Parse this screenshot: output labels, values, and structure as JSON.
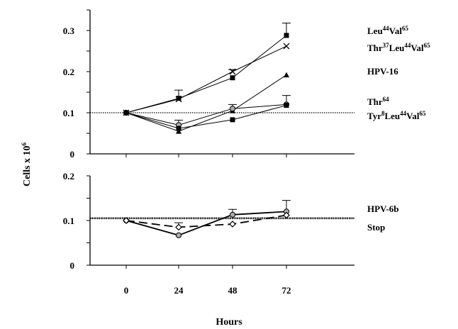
{
  "chart_data": [
    {
      "type": "line",
      "panel": "top",
      "x": [
        0,
        24,
        48,
        72
      ],
      "ylim": [
        0,
        0.35
      ],
      "yticks": [
        "0",
        "0.1",
        "0.2",
        "0.3"
      ],
      "reference_line": 0.1,
      "series": [
        {
          "name": "Leu44Val65",
          "label": [
            {
              "t": "Leu"
            },
            {
              "t": "44",
              "sup": true
            },
            {
              "t": "Val"
            },
            {
              "t": "65",
              "sup": true
            }
          ],
          "values": [
            0.1,
            0.135,
            0.185,
            0.288
          ],
          "errors": [
            0,
            0.02,
            0,
            0.03
          ],
          "marker": "square"
        },
        {
          "name": "Thr37Leu44Val65",
          "label": [
            {
              "t": "Thr"
            },
            {
              "t": "37",
              "sup": true
            },
            {
              "t": "Leu"
            },
            {
              "t": "44",
              "sup": true
            },
            {
              "t": "Val"
            },
            {
              "t": "65",
              "sup": true
            }
          ],
          "values": [
            0.1,
            0.133,
            0.2,
            0.262
          ],
          "errors": [
            0,
            0,
            0.005,
            0
          ],
          "marker": "x"
        },
        {
          "name": "HPV-16",
          "label": [
            {
              "t": "HPV-16"
            }
          ],
          "values": [
            0.1,
            0.055,
            0.105,
            0.192
          ],
          "errors": [
            0,
            0,
            0,
            0
          ],
          "marker": "triangle"
        },
        {
          "name": "Thr64",
          "label": [
            {
              "t": "Thr"
            },
            {
              "t": "64",
              "sup": true
            }
          ],
          "values": [
            0.1,
            0.07,
            0.11,
            0.12
          ],
          "errors": [
            0,
            0.012,
            0.01,
            0.022
          ],
          "marker": "circle"
        },
        {
          "name": "Tyr8Leu44Val65",
          "label": [
            {
              "t": "Tyr"
            },
            {
              "t": "8",
              "sup": true
            },
            {
              "t": "Leu"
            },
            {
              "t": "44",
              "sup": true
            },
            {
              "t": "Val"
            },
            {
              "t": "65",
              "sup": true
            }
          ],
          "values": [
            0.1,
            0.062,
            0.083,
            0.118
          ],
          "errors": [
            0,
            0,
            0,
            0
          ],
          "marker": "square"
        }
      ]
    },
    {
      "type": "line",
      "panel": "bottom",
      "x": [
        0,
        24,
        48,
        72
      ],
      "ylim": [
        0,
        0.2
      ],
      "yticks": [
        "0",
        "0.1",
        "0.2"
      ],
      "reference_line": 0.105,
      "series": [
        {
          "name": "HPV-6b",
          "label": [
            {
              "t": "HPV-6b"
            }
          ],
          "values": [
            0.1,
            0.067,
            0.113,
            0.12
          ],
          "errors": [
            0,
            0,
            0.012,
            0.025
          ],
          "marker": "circle",
          "dash": "solid"
        },
        {
          "name": "Stop",
          "label": [
            {
              "t": "Stop"
            }
          ],
          "values": [
            0.1,
            0.085,
            0.092,
            0.112
          ],
          "errors": [
            0,
            0.01,
            0,
            0
          ],
          "marker": "diamond",
          "dash": "dashed"
        }
      ]
    }
  ],
  "shared": {
    "xticks": [
      "0",
      "24",
      "48",
      "72"
    ],
    "xlabel": "Hours",
    "ylabel": [
      {
        "t": "Cells x 10"
      },
      {
        "t": "6",
        "sup": true
      }
    ]
  }
}
